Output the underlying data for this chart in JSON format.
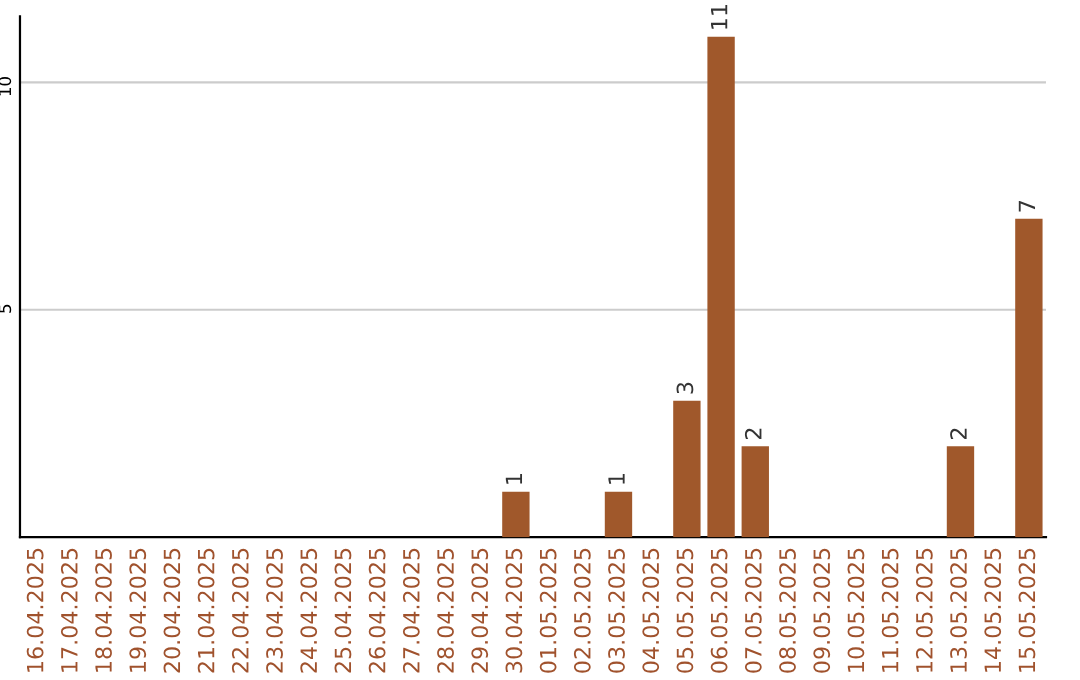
{
  "chart_data": {
    "type": "bar",
    "categories": [
      "16.04.2025",
      "17.04.2025",
      "18.04.2025",
      "19.04.2025",
      "20.04.2025",
      "21.04.2025",
      "22.04.2025",
      "23.04.2025",
      "24.04.2025",
      "25.04.2025",
      "26.04.2025",
      "27.04.2025",
      "28.04.2025",
      "29.04.2025",
      "30.04.2025",
      "01.05.2025",
      "02.05.2025",
      "03.05.2025",
      "04.05.2025",
      "05.05.2025",
      "06.05.2025",
      "07.05.2025",
      "08.05.2025",
      "09.05.2025",
      "10.05.2025",
      "11.05.2025",
      "12.05.2025",
      "13.05.2025",
      "14.05.2025",
      "15.05.2025"
    ],
    "values": [
      0,
      0,
      0,
      0,
      0,
      0,
      0,
      0,
      0,
      0,
      0,
      0,
      0,
      0,
      1,
      0,
      0,
      1,
      0,
      3,
      11,
      2,
      0,
      0,
      0,
      0,
      0,
      2,
      0,
      7
    ],
    "value_labels": [
      null,
      null,
      null,
      null,
      null,
      null,
      null,
      null,
      null,
      null,
      null,
      null,
      null,
      null,
      "1",
      null,
      null,
      "1",
      null,
      "3",
      "11",
      "2",
      null,
      null,
      null,
      null,
      null,
      "2",
      null,
      "7"
    ],
    "color": "#a0582b",
    "ylim": [
      0,
      11.45
    ],
    "yticks": [
      5,
      10
    ],
    "grid": "y"
  }
}
